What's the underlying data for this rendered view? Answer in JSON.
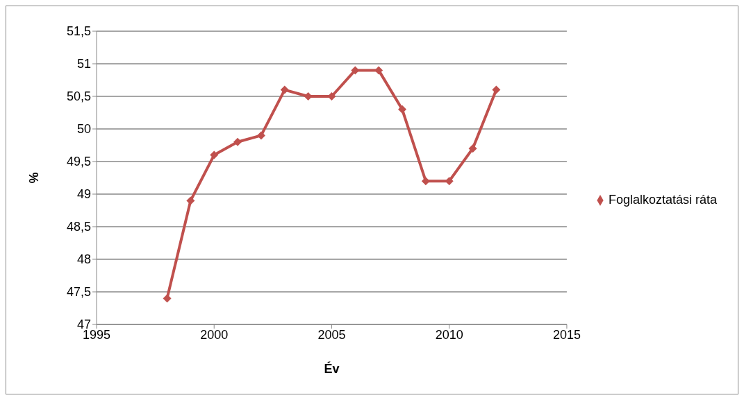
{
  "chart_data": {
    "type": "line",
    "xlabel": "Év",
    "ylabel": "%",
    "x": [
      1998,
      1999,
      2000,
      2001,
      2002,
      2003,
      2004,
      2005,
      2006,
      2007,
      2008,
      2009,
      2010,
      2011,
      2012
    ],
    "series": [
      {
        "name": "Foglalkoztatási ráta",
        "color": "#c0504d",
        "values": [
          47.4,
          48.9,
          49.6,
          49.8,
          49.9,
          50.6,
          50.5,
          50.5,
          50.9,
          50.9,
          50.3,
          49.2,
          49.2,
          49.7,
          50.6
        ]
      }
    ],
    "xlim": [
      1995,
      2015
    ],
    "xticks": [
      1995,
      2000,
      2005,
      2010,
      2015
    ],
    "ylim": [
      47,
      51.5
    ],
    "yticks": [
      47,
      {
        "value": 47.5,
        "label": "47,5"
      },
      48,
      {
        "value": 48.5,
        "label": "48,5"
      },
      49,
      {
        "value": 49.5,
        "label": "49,5"
      },
      50,
      {
        "value": 50.5,
        "label": "50,5"
      },
      51,
      {
        "value": 51.5,
        "label": "51,5"
      }
    ],
    "grid": "y",
    "legend": "right",
    "marker": "diamond",
    "line_style": "solid"
  }
}
